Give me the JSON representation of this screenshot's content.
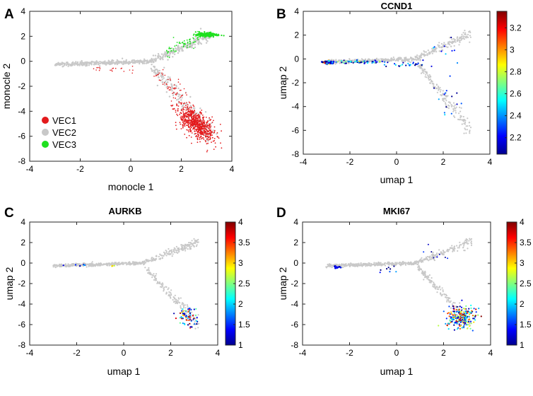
{
  "colors": {
    "vec1": "#e31a1c",
    "vec2": "#c8c8c8",
    "vec3": "#1fe01f"
  },
  "chart_data": [
    {
      "id": "A",
      "panel_label": "A",
      "type": "scatter",
      "title": "",
      "xlabel": "monocle 1",
      "ylabel": "monocle 2",
      "xlim": [
        -4,
        4
      ],
      "ylim": [
        -8,
        4
      ],
      "xticks": [
        -4,
        -2,
        0,
        2,
        4
      ],
      "yticks": [
        -8,
        -6,
        -4,
        -2,
        0,
        2,
        4
      ],
      "legend": {
        "position": "lower-left",
        "entries": [
          "VEC1",
          "VEC2",
          "VEC3"
        ]
      },
      "series": [
        {
          "name": "VEC1",
          "color": "#e31a1c",
          "description": "lower right branch cluster centered near (2.5, -5)"
        },
        {
          "name": "VEC2",
          "color": "#c8c8c8",
          "description": "trajectory backbone"
        },
        {
          "name": "VEC3",
          "color": "#1fe01f",
          "description": "upper right branch tip near (3, 2)"
        }
      ]
    },
    {
      "id": "B",
      "panel_label": "B",
      "type": "scatter",
      "title": "CCND1",
      "xlabel": "umap 1",
      "ylabel": "umap 2",
      "xlim": [
        -4,
        4
      ],
      "ylim": [
        -8,
        4
      ],
      "xticks": [
        -4,
        -2,
        0,
        2,
        4
      ],
      "yticks": [
        -8,
        -6,
        -4,
        -2,
        0,
        2,
        4
      ],
      "colorbar": {
        "min": 2.05,
        "max": 3.35,
        "ticks": [
          "2.2",
          "2.4",
          "2.6",
          "2.8",
          "3",
          "3.2"
        ],
        "tick_values": [
          2.2,
          2.4,
          2.6,
          2.8,
          3.0,
          3.2
        ]
      }
    },
    {
      "id": "C",
      "panel_label": "C",
      "type": "scatter",
      "title": "AURKB",
      "xlabel": "umap 1",
      "ylabel": "umap 2",
      "xlim": [
        -4,
        4
      ],
      "ylim": [
        -8,
        4
      ],
      "xticks": [
        -4,
        -2,
        0,
        2,
        4
      ],
      "yticks": [
        -8,
        -6,
        -4,
        -2,
        0,
        2,
        4
      ],
      "colorbar": {
        "min": 1,
        "max": 4,
        "ticks": [
          "1",
          "1.5",
          "2",
          "2.5",
          "3",
          "3.5",
          "4"
        ],
        "tick_values": [
          1,
          1.5,
          2,
          2.5,
          3,
          3.5,
          4
        ]
      }
    },
    {
      "id": "D",
      "panel_label": "D",
      "type": "scatter",
      "title": "MKI67",
      "xlabel": "umap 1",
      "ylabel": "umap 2",
      "xlim": [
        -4,
        4
      ],
      "ylim": [
        -8,
        4
      ],
      "xticks": [
        -4,
        -2,
        0,
        2,
        4
      ],
      "yticks": [
        -8,
        -6,
        -4,
        -2,
        0,
        2,
        4
      ],
      "colorbar": {
        "min": 1,
        "max": 4,
        "ticks": [
          "1",
          "1.5",
          "2",
          "2.5",
          "3",
          "3.5",
          "4"
        ],
        "tick_values": [
          1,
          1.5,
          2,
          2.5,
          3,
          3.5,
          4
        ]
      }
    }
  ]
}
